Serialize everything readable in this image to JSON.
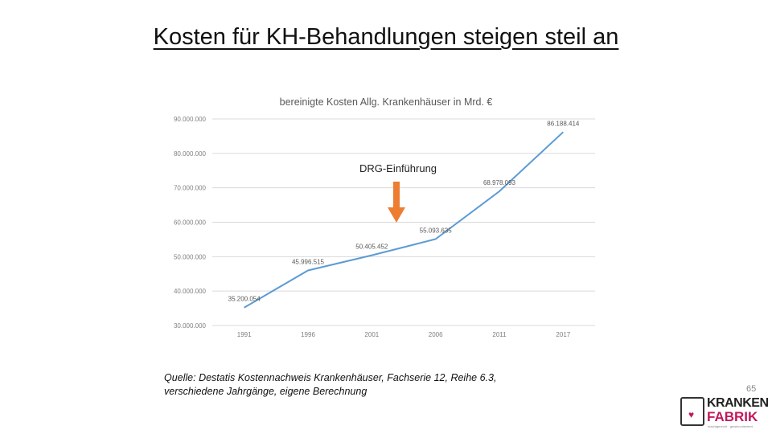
{
  "slide": {
    "title": "Kosten für KH-Behandlungen steigen steil an",
    "arrow_label": "DRG-Einführung",
    "source_line1": "Quelle: Destatis Kostennachweis Krankenhäuser, Fachserie 12, Reihe 6.3,",
    "source_line2": "verschiedene Jahrgänge, eigene Berechnung",
    "page_number": "65",
    "logo": {
      "line1": "KRANKEN",
      "line2": "FABRIK",
      "tagline": "machtgerecht · gewinnorientiert"
    }
  },
  "colors": {
    "line": "#5b9bd5",
    "arrow": "#ed7d31",
    "grid": "#d9d9d9",
    "axis_text": "#7f7f7f"
  },
  "chart_data": {
    "type": "line",
    "title": "bereinigte Kosten Allg. Krankenhäuser in Mrd. €",
    "categories": [
      "1991",
      "1996",
      "2001",
      "2006",
      "2011",
      "2017"
    ],
    "values": [
      35200054,
      45996515,
      50405452,
      55093635,
      68978093,
      86188414
    ],
    "data_labels": [
      "35.200.054",
      "45.996.515",
      "50.405.452",
      "55.093.635",
      "68.978.093",
      "86.188.414"
    ],
    "y_ticks": [
      "30.000.000",
      "40.000.000",
      "50.000.000",
      "60.000.000",
      "70.000.000",
      "80.000.000",
      "90.000.000"
    ],
    "ylim": [
      30000000,
      90000000
    ],
    "grid": true,
    "legend": "none"
  }
}
